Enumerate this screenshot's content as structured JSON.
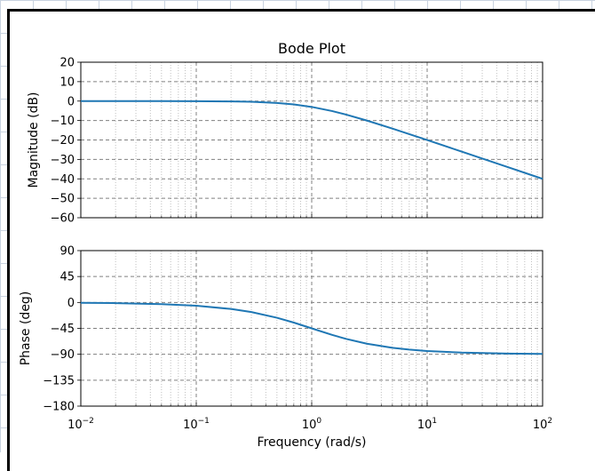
{
  "chart_data": [
    {
      "type": "line",
      "title": "Bode Plot",
      "xlabel": "",
      "ylabel": "Magnitude (dB)",
      "xscale": "log",
      "xlim": [
        0.01,
        100
      ],
      "ylim": [
        -60,
        20
      ],
      "yticks": [
        20,
        10,
        0,
        -10,
        -20,
        -30,
        -40,
        -50,
        -60
      ],
      "grid": true,
      "legend": "none",
      "line_color": "#1f77b4",
      "series": [
        {
          "x": [
            0.01,
            0.02,
            0.05,
            0.1,
            0.2,
            0.3,
            0.5,
            0.7,
            1,
            1.5,
            2,
            3,
            5,
            7,
            10,
            20,
            50,
            100
          ],
          "y": [
            0,
            0,
            -0.01,
            -0.04,
            -0.17,
            -0.37,
            -0.97,
            -1.7,
            -3.01,
            -5.12,
            -6.99,
            -10.0,
            -14.15,
            -17.0,
            -20.04,
            -26.03,
            -33.98,
            -40.0
          ]
        }
      ]
    },
    {
      "type": "line",
      "title": "",
      "xlabel": "Frequency (rad/s)",
      "ylabel": "Phase (deg)",
      "xscale": "log",
      "xlim": [
        0.01,
        100
      ],
      "ylim": [
        -180,
        90
      ],
      "yticks": [
        90,
        45,
        0,
        -45,
        -90,
        -135,
        -180
      ],
      "xticks": [
        0.01,
        0.1,
        1,
        10,
        100
      ],
      "xtick_bases": [
        "10",
        "10",
        "10",
        "10",
        "10"
      ],
      "xtick_exps": [
        "−2",
        "−1",
        "0",
        "1",
        "2"
      ],
      "grid": true,
      "legend": "none",
      "line_color": "#1f77b4",
      "series": [
        {
          "x": [
            0.01,
            0.02,
            0.05,
            0.1,
            0.2,
            0.3,
            0.5,
            0.7,
            1,
            1.5,
            2,
            3,
            5,
            7,
            10,
            20,
            50,
            100
          ],
          "y": [
            -0.57,
            -1.15,
            -2.86,
            -5.71,
            -11.31,
            -16.7,
            -26.57,
            -34.99,
            -45.0,
            -56.31,
            -63.43,
            -71.57,
            -78.69,
            -81.87,
            -84.29,
            -87.14,
            -88.85,
            -89.43
          ]
        }
      ]
    }
  ],
  "ytick_text": {
    "mag": [
      "20",
      "10",
      "0",
      "−10",
      "−20",
      "−30",
      "−40",
      "−50",
      "−60"
    ],
    "phase": [
      "90",
      "45",
      "0",
      "−45",
      "−90",
      "−135",
      "−180"
    ]
  }
}
